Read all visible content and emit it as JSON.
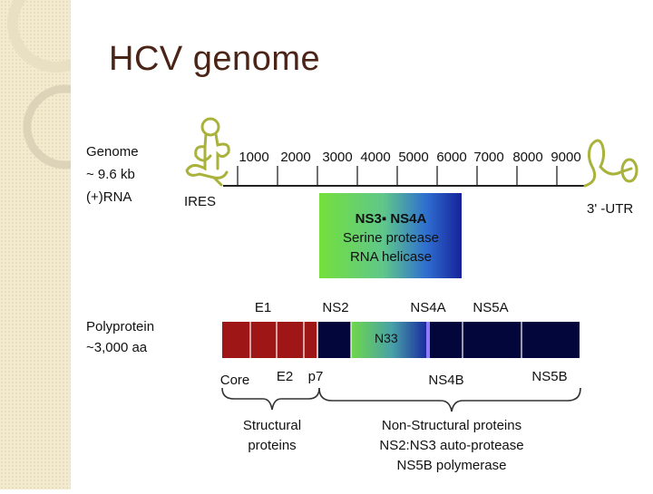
{
  "slide": {
    "title": "HCV genome",
    "colors": {
      "title": "#4a2416",
      "sidebar": "#f3ebcf",
      "structural": "#9e1616",
      "nonstructural": "#03063a",
      "ns3_gradient_start": "#7fe03a",
      "ns3_gradient_end": "#1a2ea8"
    }
  },
  "genome": {
    "label": [
      "Genome",
      "~ 9.6 kb",
      "(+)RNA"
    ],
    "scale_ticks": [
      "1000",
      "2000",
      "3000",
      "4000",
      "5000",
      "6000",
      "7000",
      "8000",
      "9000"
    ],
    "ires_label": "IRES",
    "utr_label": "3' -UTR"
  },
  "ns3_box": {
    "lines": [
      "NS3▪ NS4A",
      "Serine protease",
      "RNA helicase"
    ]
  },
  "polyprotein": {
    "label": [
      "Polyprotein",
      "~3,000 aa"
    ],
    "top_labels": [
      "E1",
      "NS2",
      "NS4A",
      "NS5A"
    ],
    "bottom_labels": [
      "Core",
      "E2",
      "p7",
      "NS4B",
      "NS5B"
    ],
    "inner_label": "N33"
  },
  "groups": {
    "structural": [
      "Structural",
      "proteins"
    ],
    "nonstructural": [
      "Non-Structural proteins",
      "NS2:NS3 auto-protease",
      "NS5B polymerase"
    ]
  }
}
